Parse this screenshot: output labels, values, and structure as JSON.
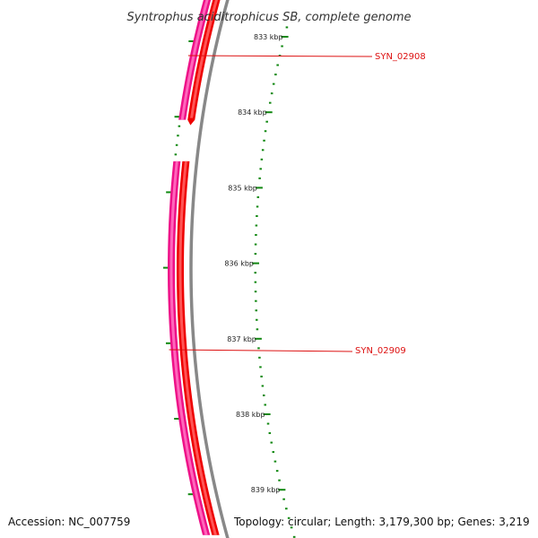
{
  "title": "Syntrophus aciditrophicus SB, complete genome",
  "footer": {
    "accession": "Accession: NC_007759",
    "topology": "Topology: circular; Length: 3,179,300 bp; Genes: 3,219"
  },
  "ruler": {
    "major_unit": "kbp",
    "major_labels": [
      "833 kbp",
      "834 kbp",
      "835 kbp",
      "836 kbp",
      "837 kbp",
      "838 kbp",
      "839 kbp"
    ],
    "major_positions_kbp": [
      833,
      834,
      835,
      836,
      837,
      838,
      839
    ],
    "minor_ticks_per_major": 7
  },
  "genes": [
    {
      "name": "SYN_02908",
      "strand": "forward",
      "start_kbp": 832.5,
      "end_kbp": 834.1
    },
    {
      "name": "SYN_02909",
      "strand": "forward",
      "start_kbp": 834.65,
      "end_kbp": 839.6
    }
  ],
  "colors": {
    "ruler_tick": "#118811",
    "backbone": "#888888",
    "cds_dark": "#ee0000",
    "cds_light": "#ff5555",
    "gene_dark": "#ee1188",
    "gene_light": "#ff66bb",
    "gene_label": "#dd1111",
    "title_text": "#333333",
    "footer_text": "#111111"
  }
}
